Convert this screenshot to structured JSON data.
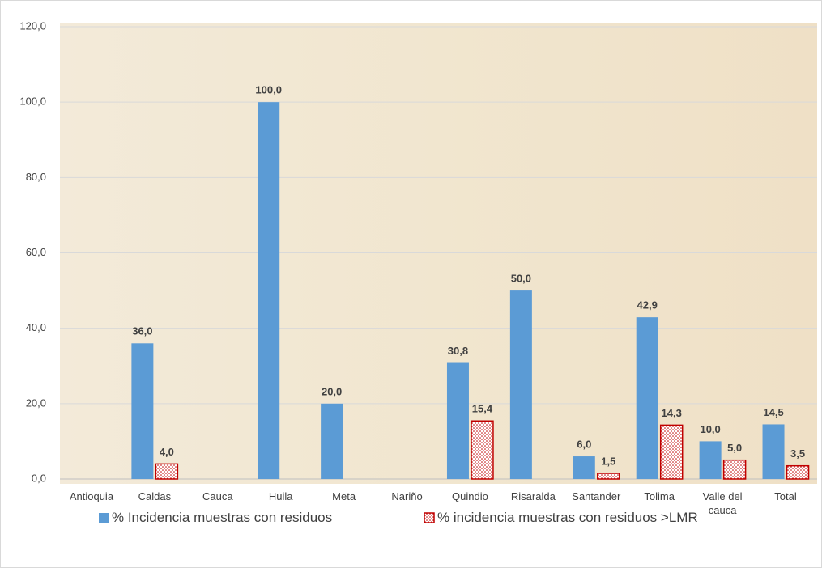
{
  "chart_data": {
    "type": "bar",
    "categories": [
      "Antioquia",
      "Caldas",
      "Cauca",
      "Huila",
      "Meta",
      "Nariño",
      "Quindio",
      "Risaralda",
      "Santander",
      "Tolima",
      "Valle del cauca",
      "Total"
    ],
    "series": [
      {
        "name": "% Incidencia muestras con residuos",
        "color": "#5b9bd5",
        "values": [
          null,
          36.0,
          null,
          100.0,
          20.0,
          null,
          30.8,
          50.0,
          6.0,
          42.9,
          10.0,
          14.5
        ],
        "value_labels": [
          null,
          "36,0",
          null,
          "100,0",
          "20,0",
          null,
          "30,8",
          "50,0",
          "6,0",
          "42,9",
          "10,0",
          "14,5"
        ]
      },
      {
        "name": "% incidencia muestras con residuos >LMR",
        "color": "#c00000",
        "values": [
          null,
          4.0,
          null,
          null,
          null,
          null,
          15.4,
          null,
          1.5,
          14.3,
          5.0,
          3.5
        ],
        "value_labels": [
          null,
          "4,0",
          null,
          null,
          null,
          null,
          "15,4",
          null,
          "1,5",
          "14,3",
          "5,0",
          "3,5"
        ]
      }
    ],
    "ylim": [
      0,
      120
    ],
    "yticks": [
      {
        "value": 0,
        "label": "0,0"
      },
      {
        "value": 20,
        "label": "20,0"
      },
      {
        "value": 40,
        "label": "40,0"
      },
      {
        "value": 60,
        "label": "60,0"
      },
      {
        "value": 80,
        "label": "80,0"
      },
      {
        "value": 100,
        "label": "100,0"
      },
      {
        "value": 120,
        "label": "120,0"
      }
    ],
    "grid": true
  }
}
